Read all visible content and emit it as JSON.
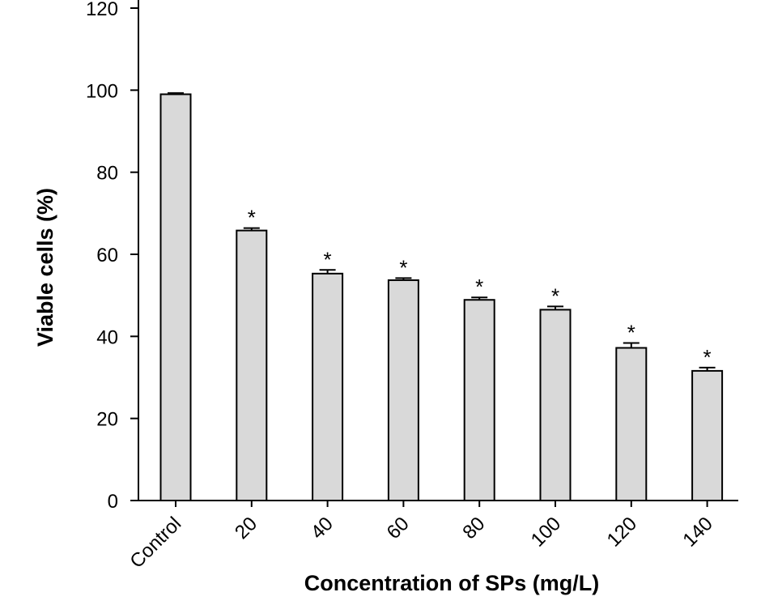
{
  "chart_data": {
    "type": "bar",
    "xlabel": "Concentration of SPs (mg/L)",
    "ylabel": "Viable cells (%)",
    "ylim": [
      0,
      120
    ],
    "yticks": [
      0,
      20,
      40,
      60,
      80,
      100,
      120
    ],
    "categories": [
      "Control",
      "20",
      "40",
      "60",
      "80",
      "100",
      "120",
      "140"
    ],
    "values": [
      99.0,
      65.8,
      55.3,
      53.7,
      48.9,
      46.5,
      37.2,
      31.6
    ],
    "errors": [
      0.3,
      0.6,
      0.9,
      0.5,
      0.6,
      0.8,
      1.2,
      0.8
    ],
    "significance": [
      "",
      "*",
      "*",
      "*",
      "*",
      "*",
      "*",
      "*"
    ],
    "bar_color": "#d9d9d9",
    "grid": false,
    "legend": "none"
  }
}
